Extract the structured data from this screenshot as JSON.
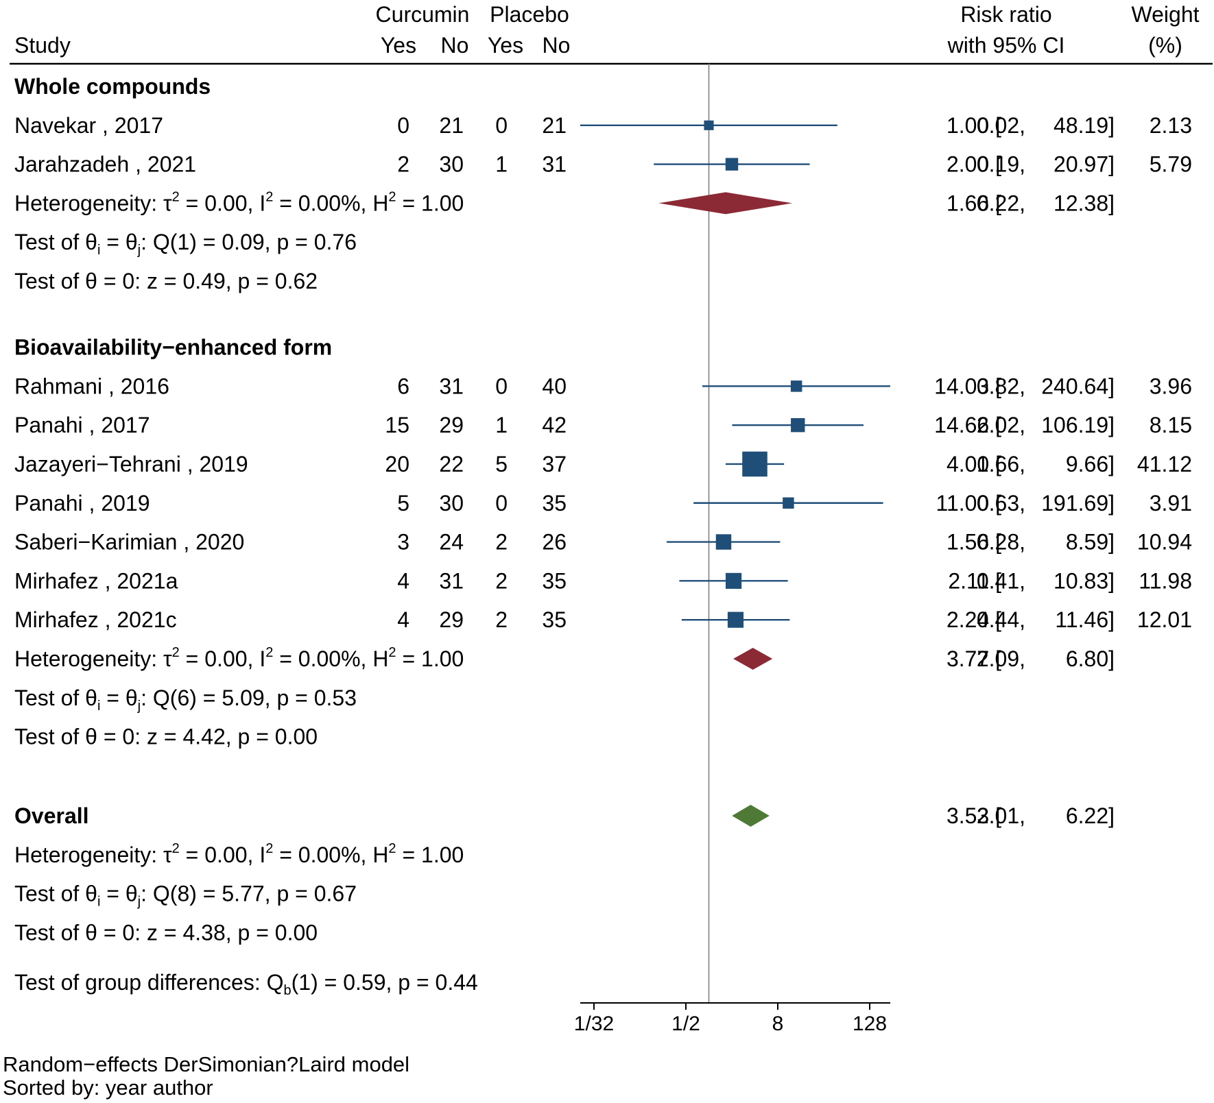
{
  "header": {
    "study": "Study",
    "curcumin": "Curcumin",
    "placebo": "Placebo",
    "yes": "Yes",
    "no": "No",
    "rr_line1": "Risk ratio",
    "rr_line2": "with 95% CI",
    "weight_line1": "Weight",
    "weight_line2": "(%)"
  },
  "footer": {
    "line1": "Random−effects DerSimonian?Laird model",
    "line2": "Sorted by: year author"
  },
  "group_test": {
    "text_a": "Test of group differences: Q",
    "sub": "b",
    "text_b": "(1) = 0.59, p = 0.44"
  },
  "colors": {
    "study_marker": "#1f4e79",
    "subgroup_diamond": "#8b2a35",
    "overall_diamond": "#4f7a35",
    "null_line": "#808080"
  },
  "chart_data": {
    "type": "forest",
    "x_scale": "log2",
    "x_ticks": [
      {
        "label": "1/32",
        "value": 0.03125
      },
      {
        "label": "1/2",
        "value": 0.5
      },
      {
        "label": "8",
        "value": 8
      },
      {
        "label": "128",
        "value": 128
      }
    ],
    "null_value": 1,
    "groups": [
      {
        "name": "Whole compounds",
        "studies": [
          {
            "label": "Navekar , 2017",
            "cy": "0",
            "cn": "21",
            "py": "0",
            "pn": "21",
            "rr": 1.0,
            "lo": 0.02,
            "hi": 48.19,
            "rr_text": "1.00",
            "lo_text": "0.02,",
            "hi_text": "48.19]",
            "weight": "2.13"
          },
          {
            "label": "Jarahzadeh , 2021",
            "cy": "2",
            "cn": "30",
            "py": "1",
            "pn": "31",
            "rr": 2.0,
            "lo": 0.19,
            "hi": 20.97,
            "rr_text": "2.00",
            "lo_text": "0.19,",
            "hi_text": "20.97]",
            "weight": "5.79"
          }
        ],
        "pooled": {
          "rr": 1.66,
          "lo": 0.22,
          "hi": 12.38,
          "rr_text": "1.66",
          "lo_text": "0.22,",
          "hi_text": "12.38]"
        },
        "het": {
          "a": "Heterogeneity: τ",
          "b": " = 0.00, I",
          "c": " = 0.00%, H",
          "d": " = 1.00",
          "sup": "2"
        },
        "q": {
          "a": "Test of θ",
          "i": "i",
          "b": " = θ",
          "j": "j",
          "c": ": Q(1) = 0.09, p = 0.76"
        },
        "z": "Test of θ = 0: z = 0.49, p = 0.62"
      },
      {
        "name": "Bioavailability−enhanced form",
        "studies": [
          {
            "label": "Rahmani , 2016",
            "cy": "6",
            "cn": "31",
            "py": "0",
            "pn": "40",
            "rr": 14.03,
            "lo": 0.82,
            "hi": 240.64,
            "rr_text": "14.03",
            "lo_text": "0.82,",
            "hi_text": "240.64]",
            "weight": "3.96"
          },
          {
            "label": "Panahi , 2017",
            "cy": "15",
            "cn": "29",
            "py": "1",
            "pn": "42",
            "rr": 14.66,
            "lo": 2.02,
            "hi": 106.19,
            "rr_text": "14.66",
            "lo_text": "2.02,",
            "hi_text": "106.19]",
            "weight": "8.15"
          },
          {
            "label": "Jazayeri−Tehrani , 2019",
            "cy": "20",
            "cn": "22",
            "py": "5",
            "pn": "37",
            "rr": 4.0,
            "lo": 1.66,
            "hi": 9.66,
            "rr_text": "4.00",
            "lo_text": "1.66,",
            "hi_text": "9.66]",
            "weight": "41.12"
          },
          {
            "label": "Panahi , 2019",
            "cy": "5",
            "cn": "30",
            "py": "0",
            "pn": "35",
            "rr": 11.0,
            "lo": 0.63,
            "hi": 191.69,
            "rr_text": "11.00",
            "lo_text": "0.63,",
            "hi_text": "191.69]",
            "weight": "3.91"
          },
          {
            "label": "Saberi−Karimian , 2020",
            "cy": "3",
            "cn": "24",
            "py": "2",
            "pn": "26",
            "rr": 1.56,
            "lo": 0.28,
            "hi": 8.59,
            "rr_text": "1.56",
            "lo_text": "0.28,",
            "hi_text": "8.59]",
            "weight": "10.94"
          },
          {
            "label": "Mirhafez , 2021a",
            "cy": "4",
            "cn": "31",
            "py": "2",
            "pn": "35",
            "rr": 2.11,
            "lo": 0.41,
            "hi": 10.83,
            "rr_text": "2.11",
            "lo_text": "0.41,",
            "hi_text": "10.83]",
            "weight": "11.98"
          },
          {
            "label": "Mirhafez , 2021c",
            "cy": "4",
            "cn": "29",
            "py": "2",
            "pn": "35",
            "rr": 2.24,
            "lo": 0.44,
            "hi": 11.46,
            "rr_text": "2.24",
            "lo_text": "0.44,",
            "hi_text": "11.46]",
            "weight": "12.01"
          }
        ],
        "pooled": {
          "rr": 3.77,
          "lo": 2.09,
          "hi": 6.8,
          "rr_text": "3.77",
          "lo_text": "2.09,",
          "hi_text": "6.80]"
        },
        "het": {
          "a": "Heterogeneity: τ",
          "b": " = 0.00, I",
          "c": " = 0.00%, H",
          "d": " = 1.00",
          "sup": "2"
        },
        "q": {
          "a": "Test of θ",
          "i": "i",
          "b": " = θ",
          "j": "j",
          "c": ": Q(6) = 5.09, p = 0.53"
        },
        "z": "Test of θ = 0: z = 4.42, p = 0.00"
      }
    ],
    "overall": {
      "name": "Overall",
      "pooled": {
        "rr": 3.53,
        "lo": 2.01,
        "hi": 6.22,
        "rr_text": "3.53",
        "lo_text": "2.01,",
        "hi_text": "6.22]"
      },
      "het": {
        "a": "Heterogeneity: τ",
        "b": " = 0.00, I",
        "c": " = 0.00%, H",
        "d": " = 1.00",
        "sup": "2"
      },
      "q": {
        "a": "Test of θ",
        "i": "i",
        "b": " = θ",
        "j": "j",
        "c": ": Q(8) = 5.77, p = 0.67"
      },
      "z": "Test of θ = 0: z = 4.38, p = 0.00"
    }
  }
}
